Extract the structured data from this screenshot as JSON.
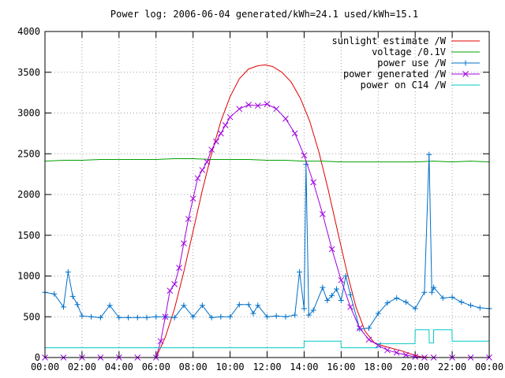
{
  "chart_data": {
    "type": "line",
    "title": "Power log: 2006-06-04 generated/kWh=24.1 used/kWh=15.1",
    "xlabel": "",
    "ylabel": "",
    "xlim": [
      0,
      24
    ],
    "ylim": [
      0,
      4000
    ],
    "grid": true,
    "legend_position": "top-right",
    "x_ticks": [
      0,
      2,
      4,
      6,
      8,
      10,
      12,
      14,
      16,
      18,
      20,
      22,
      24
    ],
    "x_tick_labels": [
      "00:00",
      "02:00",
      "04:00",
      "06:00",
      "08:00",
      "10:00",
      "12:00",
      "14:00",
      "16:00",
      "18:00",
      "20:00",
      "22:00",
      "00:00"
    ],
    "y_ticks": [
      0,
      500,
      1000,
      1500,
      2000,
      2500,
      3000,
      3500,
      4000
    ],
    "y_tick_labels": [
      "0",
      "500",
      "1000",
      "1500",
      "2000",
      "2500",
      "3000",
      "3500",
      "4000"
    ],
    "series": [
      {
        "name": "sunlight estimate /W",
        "color": "#e00000",
        "marker": "none",
        "x": [
          6.0,
          6.5,
          7.0,
          7.5,
          8.0,
          8.5,
          9.0,
          9.5,
          10.0,
          10.5,
          11.0,
          11.5,
          11.9,
          12.3,
          12.8,
          13.3,
          13.8,
          14.3,
          14.8,
          15.3,
          15.8,
          16.3,
          16.8,
          17.3,
          17.8,
          18.3,
          18.8,
          19.3,
          19.8,
          20.3,
          20.8
        ],
        "y": [
          0,
          250,
          600,
          1050,
          1550,
          2050,
          2500,
          2900,
          3200,
          3420,
          3540,
          3580,
          3590,
          3570,
          3500,
          3380,
          3180,
          2900,
          2520,
          2060,
          1560,
          1060,
          620,
          320,
          180,
          140,
          110,
          80,
          40,
          10,
          0
        ]
      },
      {
        "name": "voltage /0.1V",
        "color": "#00a000",
        "marker": "none",
        "x": [
          0.0,
          1.0,
          2.0,
          3.0,
          4.0,
          5.0,
          6.0,
          7.0,
          8.0,
          9.0,
          10.0,
          11.0,
          12.0,
          13.0,
          14.0,
          15.0,
          16.0,
          17.0,
          18.0,
          19.0,
          20.0,
          21.0,
          22.0,
          23.0,
          24.0
        ],
        "y": [
          2410,
          2420,
          2420,
          2430,
          2430,
          2430,
          2430,
          2440,
          2440,
          2430,
          2430,
          2430,
          2420,
          2420,
          2410,
          2410,
          2400,
          2400,
          2400,
          2400,
          2400,
          2410,
          2400,
          2410,
          2400
        ]
      },
      {
        "name": "power use /W",
        "color": "#0070c8",
        "marker": "plus",
        "x": [
          0.0,
          0.5,
          1.0,
          1.25,
          1.5,
          1.75,
          2.0,
          2.5,
          3.0,
          3.5,
          4.0,
          4.5,
          5.0,
          5.5,
          6.0,
          6.5,
          7.0,
          7.5,
          8.0,
          8.5,
          9.0,
          9.5,
          10.0,
          10.5,
          11.0,
          11.25,
          11.5,
          12.0,
          12.5,
          13.0,
          13.5,
          13.75,
          14.0,
          14.1,
          14.25,
          14.5,
          15.0,
          15.25,
          15.5,
          15.75,
          16.0,
          16.25,
          16.5,
          17.0,
          17.5,
          18.0,
          18.5,
          19.0,
          19.5,
          20.0,
          20.5,
          20.75,
          20.9,
          21.0,
          21.5,
          22.0,
          22.5,
          23.0,
          23.5,
          24.0
        ],
        "y": [
          800,
          780,
          620,
          1050,
          750,
          650,
          510,
          500,
          490,
          640,
          490,
          490,
          490,
          490,
          500,
          500,
          490,
          640,
          500,
          640,
          490,
          500,
          500,
          650,
          650,
          540,
          640,
          500,
          510,
          500,
          520,
          1050,
          600,
          2370,
          520,
          580,
          860,
          700,
          760,
          840,
          700,
          1000,
          770,
          350,
          360,
          540,
          670,
          730,
          680,
          600,
          800,
          2490,
          800,
          860,
          730,
          740,
          680,
          640,
          610,
          600
        ]
      },
      {
        "name": "power generated /W",
        "color": "#a000e0",
        "marker": "x",
        "x": [
          0.0,
          1.0,
          2.0,
          3.0,
          4.0,
          5.0,
          6.0,
          6.25,
          6.5,
          6.75,
          7.0,
          7.25,
          7.5,
          7.75,
          8.0,
          8.25,
          8.5,
          8.75,
          9.0,
          9.25,
          9.5,
          9.75,
          10.0,
          10.5,
          11.0,
          11.5,
          12.0,
          12.5,
          13.0,
          13.5,
          14.0,
          14.5,
          15.0,
          15.5,
          16.0,
          16.5,
          17.0,
          17.5,
          18.0,
          18.5,
          19.0,
          19.5,
          20.0,
          20.5,
          21.0,
          22.0,
          23.0,
          24.0
        ],
        "y": [
          0,
          0,
          0,
          0,
          0,
          0,
          0,
          200,
          500,
          820,
          900,
          1100,
          1400,
          1700,
          1950,
          2200,
          2300,
          2400,
          2550,
          2650,
          2750,
          2850,
          2950,
          3050,
          3100,
          3090,
          3110,
          3050,
          2930,
          2750,
          2480,
          2150,
          1760,
          1330,
          950,
          620,
          360,
          220,
          150,
          90,
          60,
          30,
          10,
          0,
          0,
          0,
          0,
          0
        ]
      },
      {
        "name": "power on C14 /W",
        "color": "#00c8c8",
        "marker": "none",
        "x": [
          0.0,
          14.0,
          14.0,
          15.99,
          16.0,
          17.99,
          18.0,
          19.99,
          20.0,
          20.75,
          20.76,
          20.99,
          21.0,
          21.99,
          22.0,
          24.0
        ],
        "y": [
          120,
          120,
          200,
          200,
          120,
          120,
          170,
          170,
          340,
          340,
          180,
          180,
          340,
          340,
          200,
          200
        ]
      }
    ]
  }
}
